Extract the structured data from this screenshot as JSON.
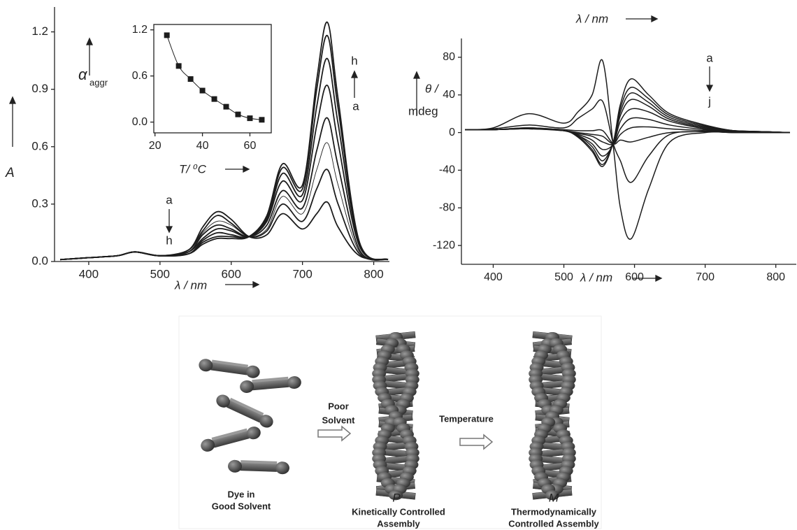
{
  "chart_data": [
    {
      "type": "line",
      "color": "#1c1c1c",
      "x_label": "λ / nm",
      "y_label": "A",
      "annotations": [
        "a",
        "h",
        "h",
        "a"
      ],
      "x": [
        360,
        400,
        440,
        465,
        500,
        540,
        560,
        580,
        600,
        625,
        650,
        672,
        700,
        720,
        735,
        750,
        780,
        820
      ],
      "xlim": [
        352,
        823
      ],
      "xticks": [
        400,
        500,
        600,
        700,
        800
      ],
      "ylim": [
        0,
        1.33
      ],
      "yticks": [
        {
          "value": 0,
          "label": "0.0"
        },
        0.3,
        0.6,
        0.9,
        1.2
      ],
      "series": [
        {
          "values": [
            0.01,
            0.02,
            0.03,
            0.05,
            0.03,
            0.06,
            0.18,
            0.26,
            0.22,
            0.13,
            0.14,
            0.25,
            0.17,
            0.25,
            0.31,
            0.18,
            0.03,
            0.01
          ]
        },
        {
          "values": [
            0.01,
            0.02,
            0.03,
            0.05,
            0.03,
            0.06,
            0.16,
            0.24,
            0.2,
            0.13,
            0.16,
            0.3,
            0.21,
            0.38,
            0.48,
            0.3,
            0.04,
            0.01
          ]
        },
        {
          "values": [
            0.01,
            0.02,
            0.03,
            0.05,
            0.03,
            0.05,
            0.15,
            0.21,
            0.19,
            0.13,
            0.17,
            0.34,
            0.25,
            0.48,
            0.62,
            0.4,
            0.05,
            0.01
          ]
        },
        {
          "values": [
            0.01,
            0.02,
            0.03,
            0.05,
            0.03,
            0.05,
            0.14,
            0.19,
            0.17,
            0.13,
            0.19,
            0.37,
            0.28,
            0.58,
            0.75,
            0.5,
            0.06,
            0.01
          ]
        },
        {
          "values": [
            0.01,
            0.02,
            0.03,
            0.05,
            0.03,
            0.05,
            0.12,
            0.17,
            0.16,
            0.13,
            0.21,
            0.42,
            0.32,
            0.71,
            0.92,
            0.62,
            0.08,
            0.01
          ]
        },
        {
          "values": [
            0.01,
            0.02,
            0.03,
            0.05,
            0.03,
            0.04,
            0.11,
            0.15,
            0.14,
            0.13,
            0.22,
            0.46,
            0.35,
            0.81,
            1.06,
            0.72,
            0.09,
            0.01
          ]
        },
        {
          "values": [
            0.01,
            0.02,
            0.03,
            0.05,
            0.03,
            0.04,
            0.1,
            0.13,
            0.13,
            0.13,
            0.23,
            0.49,
            0.38,
            0.9,
            1.18,
            0.8,
            0.1,
            0.01
          ]
        },
        {
          "values": [
            0.01,
            0.02,
            0.03,
            0.05,
            0.03,
            0.04,
            0.09,
            0.12,
            0.12,
            0.13,
            0.24,
            0.51,
            0.4,
            0.95,
            1.25,
            0.85,
            0.1,
            0.01
          ]
        }
      ]
    },
    {
      "type": "scatter",
      "color": "#1c1c1c",
      "x_label": "T/ ⁰C",
      "y_label": "α",
      "y_label_sub": "aggr",
      "x": [
        25,
        30,
        35,
        40,
        45,
        50,
        55,
        60,
        65
      ],
      "values": [
        1.13,
        0.73,
        0.56,
        0.41,
        0.3,
        0.2,
        0.1,
        0.05,
        0.03
      ],
      "xlim": [
        19.5,
        69
      ],
      "xticks": [
        20,
        40,
        60
      ],
      "ylim": [
        -0.14,
        1.27
      ],
      "yticks": [
        {
          "value": 0,
          "label": "0.0"
        },
        {
          "value": 0.6,
          "label": "0.6"
        },
        {
          "value": 1.2,
          "label": "1.2"
        }
      ]
    },
    {
      "type": "line",
      "color": "#1c1c1c",
      "x_label": "λ / nm",
      "x_label_top": "λ / nm",
      "y_label_lines": [
        "θ /",
        "mdeg"
      ],
      "annotations": [
        "a",
        "j"
      ],
      "x": [
        360,
        400,
        450,
        500,
        520,
        540,
        555,
        570,
        580,
        595,
        620,
        650,
        700,
        740,
        780,
        820
      ],
      "xlim": [
        355,
        830
      ],
      "xticks": [
        400,
        500,
        600,
        700,
        800
      ],
      "ylim": [
        -140,
        100
      ],
      "yticks": [
        -120,
        -80,
        -40,
        0,
        40,
        80
      ],
      "series": [
        {
          "values": [
            3,
            3,
            5,
            2,
            -5,
            -20,
            -36,
            -10,
            30,
            57,
            40,
            20,
            8,
            2,
            1,
            0
          ]
        },
        {
          "values": [
            3,
            3,
            5,
            2,
            -4,
            -18,
            -34,
            -10,
            26,
            48,
            36,
            18,
            7,
            2,
            1,
            0
          ]
        },
        {
          "values": [
            3,
            3,
            4,
            2,
            -3,
            -15,
            -30,
            -10,
            22,
            42,
            32,
            16,
            6,
            2,
            1,
            0
          ]
        },
        {
          "values": [
            3,
            3,
            4,
            2,
            -3,
            -12,
            -25,
            -12,
            18,
            35,
            28,
            14,
            5,
            2,
            1,
            0
          ]
        },
        {
          "values": [
            3,
            3,
            4,
            2,
            -2,
            -8,
            -18,
            -12,
            12,
            25,
            22,
            12,
            4,
            2,
            1,
            0
          ]
        },
        {
          "values": [
            3,
            3,
            4,
            2,
            -1,
            -4,
            -10,
            -12,
            4,
            15,
            14,
            8,
            3,
            1,
            1,
            0
          ]
        },
        {
          "values": [
            3,
            3,
            4,
            2,
            0,
            -2,
            -4,
            -12,
            -2,
            5,
            6,
            4,
            2,
            1,
            0,
            0
          ]
        },
        {
          "values": [
            3,
            3,
            5,
            3,
            2,
            2,
            2,
            -12,
            -8,
            -10,
            -5,
            0,
            1,
            0,
            0,
            0
          ]
        },
        {
          "values": [
            3,
            4,
            8,
            5,
            15,
            25,
            33,
            -12,
            -30,
            -53,
            -25,
            -2,
            1,
            0,
            0,
            0
          ]
        },
        {
          "values": [
            3,
            5,
            20,
            10,
            22,
            40,
            76,
            -15,
            -80,
            -113,
            -60,
            -10,
            0,
            0,
            0,
            0
          ]
        }
      ]
    }
  ],
  "scheme": {
    "dye": [
      "Dye in",
      "Good Solvent"
    ],
    "step1": [
      "Poor",
      "Solvent"
    ],
    "step2": "Temperature",
    "p_label": "P",
    "p_caption": [
      "Kinetically Controlled",
      "Assembly"
    ],
    "m_label": "M",
    "m_caption": [
      "Thermodynamically",
      "Controlled Assembly"
    ]
  }
}
